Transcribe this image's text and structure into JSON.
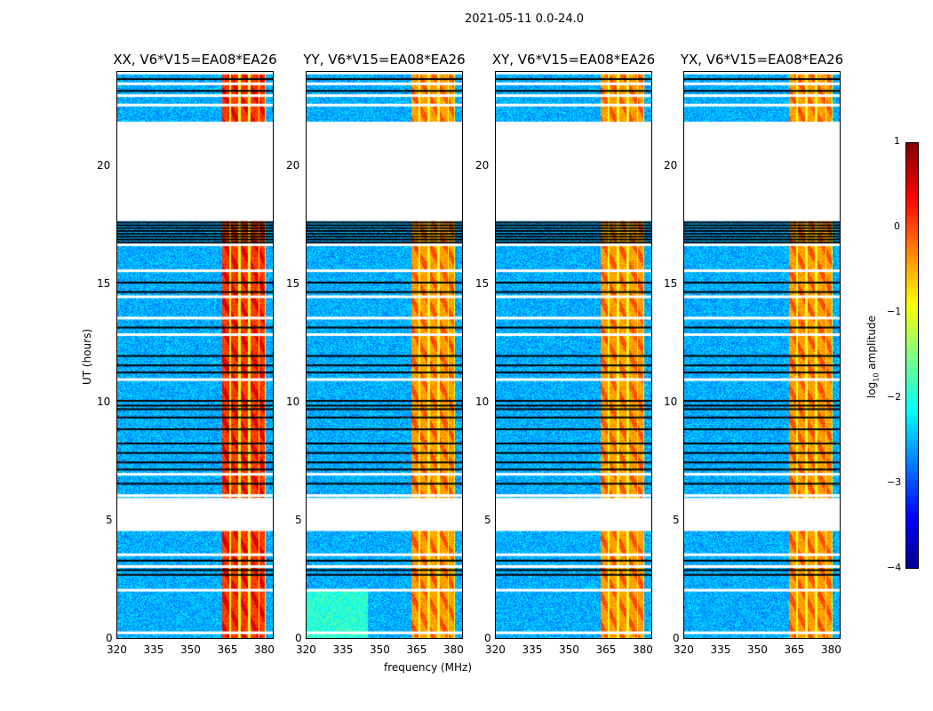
{
  "chart_data": {
    "type": "heatmap",
    "title": "2021-05-11 0.0-24.0",
    "panels": [
      {
        "title": "XX, V6*V15=EA08*EA26"
      },
      {
        "title": "YY, V6*V15=EA08*EA26"
      },
      {
        "title": "XY, V6*V15=EA08*EA26"
      },
      {
        "title": "YX, V6*V15=EA08*EA26"
      }
    ],
    "xlabel": "frequency (MHz)",
    "ylabel": "UT (hours)",
    "xlim": [
      320,
      384
    ],
    "ylim": [
      0,
      24
    ],
    "xticks": [
      "320",
      "335",
      "350",
      "365",
      "380"
    ],
    "yticks": [
      "0",
      "5",
      "10",
      "15",
      "20"
    ],
    "bright_band_mhz": [
      363,
      381
    ],
    "bright_subbands_mhz": [
      [
        363,
        366
      ],
      [
        366.5,
        369.5
      ],
      [
        370.5,
        373.5
      ],
      [
        374.5,
        378
      ],
      [
        378.5,
        380.5
      ]
    ],
    "blank_time_ranges_hours": [
      [
        4.6,
        6.0
      ],
      [
        17.7,
        21.9
      ]
    ],
    "flagged_line_region_hours": [
      16.8,
      17.7
    ],
    "white_gap_times_hours": [
      0.3,
      2.1,
      3.1,
      3.6,
      6.1,
      7.0,
      11.0,
      12.9,
      13.6,
      14.5,
      15.6,
      16.7,
      22.6,
      23.0,
      23.5
    ],
    "black_line_times_hours": [
      2.75,
      2.95,
      3.35,
      6.6,
      7.2,
      7.5,
      7.9,
      8.3,
      8.9,
      9.4,
      9.75,
      9.9,
      10.1,
      11.3,
      11.6,
      12.0,
      13.2,
      14.7,
      15.1,
      23.2,
      23.7
    ],
    "colorbar": {
      "label": "log10 amplitude",
      "range": [
        -4,
        1
      ],
      "ticks": [
        "1",
        "0",
        "−1",
        "−2",
        "−3",
        "−4"
      ],
      "colormap": "jet"
    }
  }
}
